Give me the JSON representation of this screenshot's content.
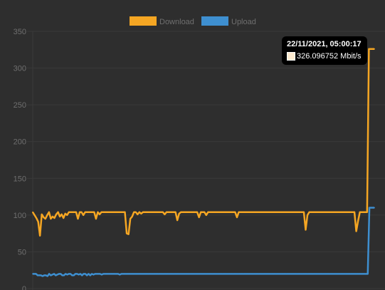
{
  "chart_data": {
    "type": "line",
    "y_ticks": [
      "350",
      "300",
      "250",
      "200",
      "150",
      "100",
      "50",
      "0"
    ],
    "ylim": [
      0,
      350
    ],
    "grid": true,
    "legend_position": "top-center",
    "series": [
      {
        "name": "Download",
        "color": "#f5a623",
        "values": [
          104,
          100,
          96,
          91,
          72,
          101,
          97,
          95,
          100,
          104,
          95,
          98,
          96,
          101,
          104,
          98,
          101,
          96,
          102,
          100,
          104,
          104,
          104,
          104,
          104,
          95,
          104,
          104,
          100,
          104,
          104,
          104,
          104,
          104,
          104,
          95,
          104,
          101,
          104,
          104,
          104,
          104,
          104,
          104,
          104,
          104,
          104,
          104,
          104,
          104,
          104,
          104,
          75,
          74,
          95,
          98,
          104,
          104,
          101,
          104,
          102,
          104,
          104,
          104,
          104,
          104,
          104,
          104,
          104,
          104,
          104,
          104,
          104,
          101,
          104,
          104,
          104,
          104,
          104,
          104,
          93,
          102,
          104,
          104,
          104,
          104,
          104,
          104,
          104,
          104,
          104,
          104,
          97,
          104,
          104,
          104,
          100,
          104,
          104,
          104,
          104,
          104,
          104,
          104,
          104,
          104,
          104,
          104,
          104,
          104,
          104,
          104,
          104,
          97,
          104,
          104,
          104,
          104,
          104,
          104,
          104,
          104,
          104,
          104,
          104,
          104,
          104,
          104,
          104,
          104,
          104,
          104,
          104,
          104,
          104,
          104,
          104,
          104,
          104,
          104,
          104,
          104,
          104,
          104,
          104,
          104,
          104,
          104,
          104,
          104,
          104,
          80,
          100,
          104,
          104,
          104,
          104,
          104,
          104,
          104,
          104,
          104,
          104,
          104,
          104,
          104,
          104,
          104,
          104,
          104,
          104,
          104,
          104,
          104,
          104,
          104,
          104,
          104,
          104,
          78,
          92,
          104,
          104,
          104,
          104,
          104,
          326,
          326,
          326,
          326
        ],
        "tooltip": {
          "title": "22/11/2021, 05:00:17",
          "value": "326.096752 Mbit/s"
        }
      },
      {
        "name": "Upload",
        "color": "#3e8fd0",
        "values": [
          20,
          20,
          20,
          18,
          18,
          18,
          17,
          18,
          18,
          17,
          20,
          18,
          19,
          20,
          18,
          19,
          20,
          20,
          18,
          18,
          20,
          19,
          20,
          20,
          18,
          18,
          20,
          20,
          19,
          20,
          18,
          20,
          20,
          18,
          20,
          18,
          20,
          19,
          20,
          20,
          20,
          20,
          19,
          20,
          20,
          20,
          20,
          20,
          20,
          20,
          20,
          20,
          20,
          19,
          20,
          20,
          20,
          20,
          20,
          20,
          20,
          20,
          20,
          20,
          20,
          20,
          20,
          20,
          20,
          20,
          20,
          20,
          20,
          20,
          20,
          20,
          20,
          20,
          20,
          20,
          20,
          20,
          20,
          20,
          20,
          20,
          20,
          20,
          20,
          20,
          20,
          20,
          20,
          20,
          20,
          20,
          20,
          20,
          20,
          20,
          20,
          20,
          20,
          20,
          20,
          20,
          20,
          20,
          20,
          20,
          20,
          20,
          20,
          20,
          20,
          20,
          20,
          20,
          20,
          20,
          20,
          20,
          20,
          20,
          20,
          20,
          20,
          20,
          20,
          20,
          20,
          20,
          20,
          20,
          20,
          20,
          20,
          20,
          20,
          20,
          20,
          20,
          20,
          20,
          20,
          20,
          20,
          20,
          20,
          20,
          20,
          20,
          20,
          20,
          20,
          20,
          20,
          20,
          20,
          20,
          20,
          20,
          20,
          20,
          20,
          20,
          20,
          20,
          20,
          20,
          20,
          20,
          20,
          20,
          20,
          20,
          20,
          20,
          20,
          20,
          20,
          20,
          20,
          20,
          20,
          20,
          20,
          20,
          20,
          20,
          20,
          20,
          20,
          20,
          20,
          20,
          20,
          20,
          20,
          20,
          20,
          20,
          20,
          20,
          20,
          110,
          110,
          110,
          110
        ]
      }
    ]
  }
}
